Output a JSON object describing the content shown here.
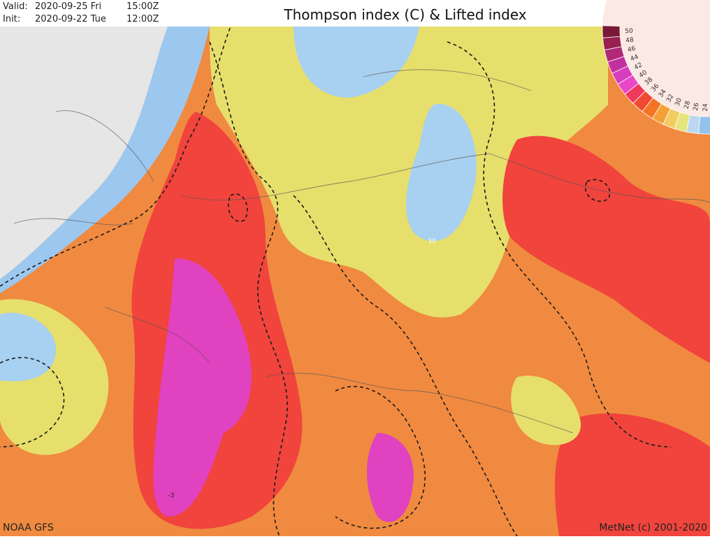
{
  "header": {
    "valid_label": "Valid:",
    "valid_date": "2020-09-25 Fri",
    "valid_time": "15:00Z",
    "init_label": "Init:",
    "init_date": "2020-09-22 Tue",
    "init_time": "12:00Z",
    "title": "Thompson index (C) & Lifted index"
  },
  "legend": {
    "items": [
      {
        "label": "50",
        "color": "#7a1838"
      },
      {
        "label": "48",
        "color": "#98204e"
      },
      {
        "label": "46",
        "color": "#b02878"
      },
      {
        "label": "44",
        "color": "#c230a0"
      },
      {
        "label": "42",
        "color": "#d63cc0"
      },
      {
        "label": "40",
        "color": "#e848c8"
      },
      {
        "label": "38",
        "color": "#f0385a"
      },
      {
        "label": "36",
        "color": "#f04a34"
      },
      {
        "label": "34",
        "color": "#f47424"
      },
      {
        "label": "32",
        "color": "#f4a038"
      },
      {
        "label": "30",
        "color": "#f2cc60"
      },
      {
        "label": "28",
        "color": "#e6e47c"
      },
      {
        "label": "26",
        "color": "#bcd8f0"
      },
      {
        "label": "24",
        "color": "#94c2ea"
      }
    ]
  },
  "map": {
    "contour_labels": [
      "30",
      "-3"
    ]
  },
  "footer": {
    "source": "NOAA GFS",
    "copyright": "MetNet (c) 2001-2020"
  }
}
